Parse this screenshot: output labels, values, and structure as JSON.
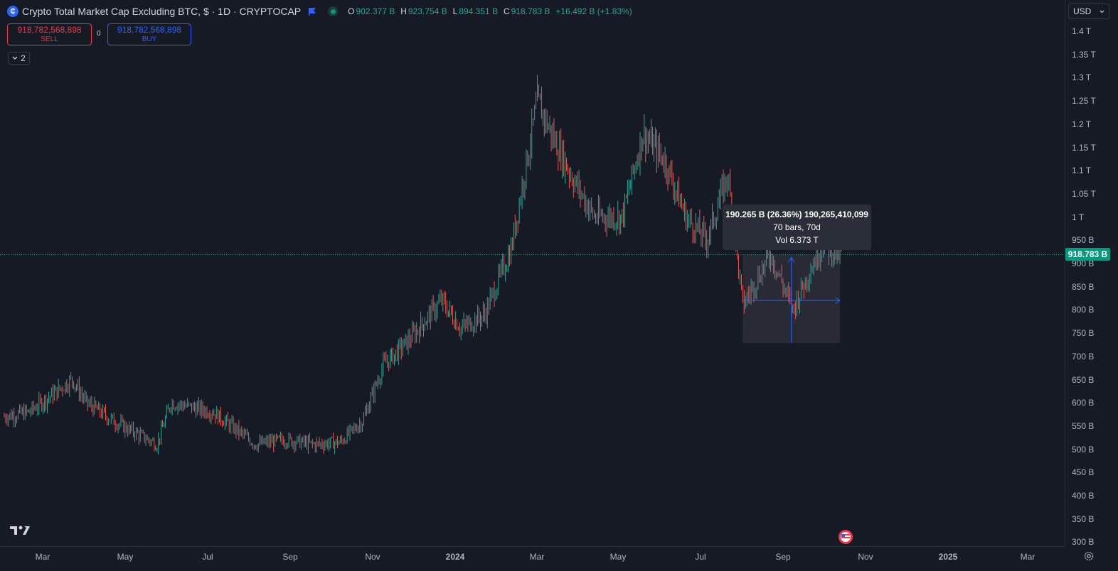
{
  "header": {
    "title": "Crypto Total Market Cap Excluding BTC, $ · 1D · CRYPTOCAP",
    "ohlc": [
      {
        "key": "O",
        "value": "902.377 B"
      },
      {
        "key": "H",
        "value": "923.754 B"
      },
      {
        "key": "L",
        "value": "894.351 B"
      },
      {
        "key": "C",
        "value": "918.783 B"
      }
    ],
    "change": "+16.492 B (+1.83%)"
  },
  "trade": {
    "sell_price": "918,782,568,898",
    "sell_label": "SELL",
    "spread": "0",
    "buy_price": "918,782,568,898",
    "buy_label": "BUY"
  },
  "indicators_toggle": "2",
  "currency": "USD",
  "price_axis": [
    "1.4 T",
    "1.35 T",
    "1.3 T",
    "1.25 T",
    "1.2 T",
    "1.15 T",
    "1.1 T",
    "1.05 T",
    "1 T",
    "950 B",
    "900 B",
    "850 B",
    "800 B",
    "750 B",
    "700 B",
    "650 B",
    "600 B",
    "550 B",
    "500 B",
    "450 B",
    "400 B",
    "350 B",
    "300 B"
  ],
  "last_price_label": "918.783 B",
  "time_axis": [
    "Mar",
    "May",
    "Jul",
    "Sep",
    "Nov",
    "2024",
    "Mar",
    "May",
    "Jul",
    "Sep",
    "Nov",
    "2025",
    "Mar"
  ],
  "measure": {
    "line1": "190.265 B (26.36%) 190,265,410,099",
    "line2": "70 bars, 70d",
    "line3": "Vol 6.373 T"
  },
  "colors": {
    "up": "#26a69a",
    "down": "#ef5350",
    "background": "#161a25",
    "accent": "#2962ff"
  },
  "chart_data": {
    "type": "line",
    "title": "Crypto Total Market Cap Excluding BTC, $ · 1D · CRYPTOCAP",
    "xlabel": "",
    "ylabel": "",
    "ylim": [
      300,
      1400
    ],
    "y_unit": "B",
    "series": [
      {
        "x": [
          "2023-02-20",
          "2023-03-10",
          "2023-04-10",
          "2023-04-20",
          "2023-05-10",
          "2023-06-10",
          "2023-06-20",
          "2023-07-20",
          "2023-08-20",
          "2023-09-10",
          "2023-10-01",
          "2023-10-20",
          "2023-11-05",
          "2023-11-20",
          "2023-12-10",
          "2024-01-01",
          "2024-01-15",
          "2024-02-01",
          "2024-02-20",
          "2024-03-10",
          "2024-03-20",
          "2024-04-05",
          "2024-04-20",
          "2024-05-10",
          "2024-05-25",
          "2024-06-10",
          "2024-06-25",
          "2024-07-10",
          "2024-07-25",
          "2024-08-05",
          "2024-08-25",
          "2024-09-10",
          "2024-09-20",
          "2024-10-01",
          "2024-10-15"
        ],
        "values": [
          570,
          580,
          650,
          600,
          560,
          510,
          600,
          580,
          510,
          520,
          510,
          515,
          560,
          680,
          740,
          820,
          760,
          790,
          930,
          1250,
          1180,
          1080,
          1000,
          1000,
          1180,
          1120,
          1000,
          950,
          1090,
          810,
          920,
          800,
          870,
          940,
          918.783
        ]
      }
    ]
  }
}
